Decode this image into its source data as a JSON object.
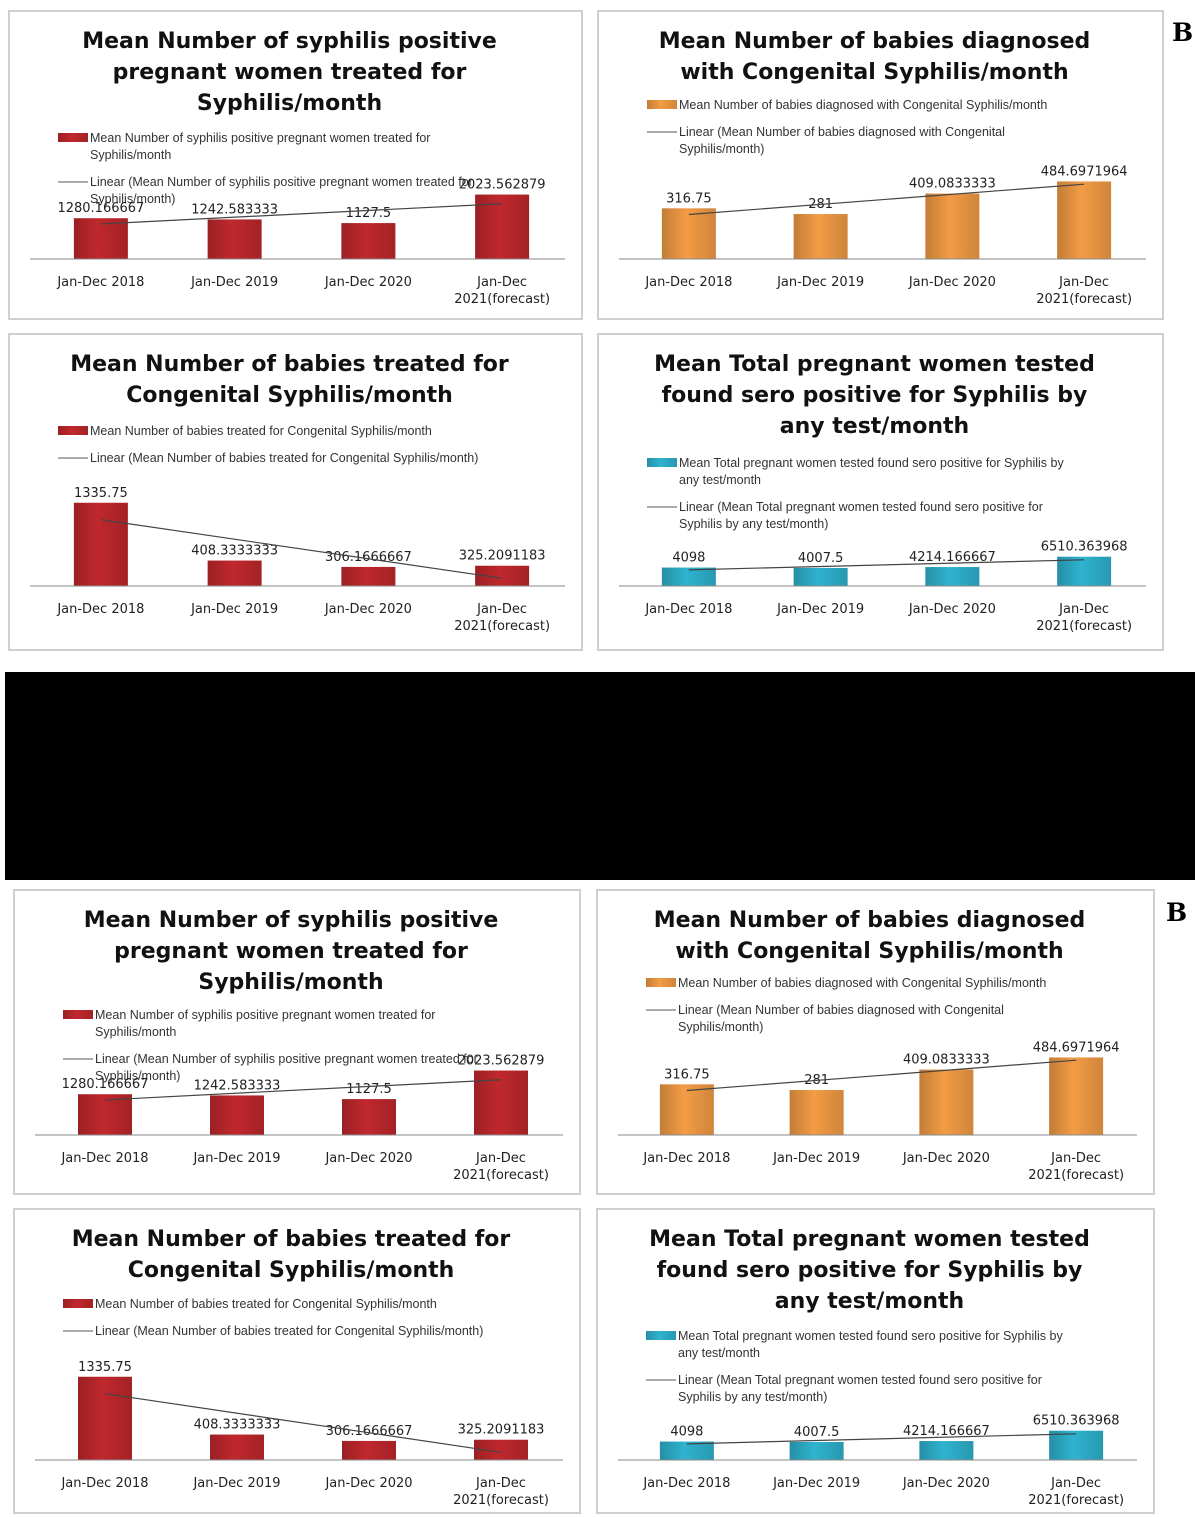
{
  "panel_labels": [
    "B",
    "B"
  ],
  "chart_data": [
    {
      "type": "bar",
      "title": "Mean Number of syphilis positive pregnant women treated for Syphilis/month",
      "title_lines": [
        "Mean Number of syphilis positive",
        "pregnant women treated for",
        "Syphilis/month"
      ],
      "categories": [
        "Jan-Dec 2018",
        "Jan-Dec 2019",
        "Jan-Dec 2020",
        "Jan-Dec 2021(forecast)"
      ],
      "category_lines": [
        [
          "Jan-Dec 2018"
        ],
        [
          "Jan-Dec 2019"
        ],
        [
          "Jan-Dec 2020"
        ],
        [
          "Jan-Dec",
          "2021(forecast)"
        ]
      ],
      "series": [
        {
          "name": "Mean Number of syphilis positive pregnant women treated for Syphilis/month",
          "values": [
            1280.166667,
            1242.583333,
            1127.5,
            2023.562879
          ]
        }
      ],
      "data_labels": [
        "1280.166667",
        "1242.583333",
        "1127.5",
        "2023.562879"
      ],
      "legend": [
        [
          "Mean Number of syphilis positive pregnant women treated for",
          "Syphilis/month"
        ],
        [
          "Linear (Mean Number of syphilis positive pregnant women treated for",
          "Syphilis/month)"
        ]
      ],
      "trendline": "linear",
      "ylim": [
        0,
        2700
      ],
      "legend_position": "top",
      "color": "#c0282d"
    },
    {
      "type": "bar",
      "title": "Mean Number of babies diagnosed with Congenital Syphilis/month",
      "title_lines": [
        "Mean Number of babies diagnosed",
        "with Congenital Syphilis/month"
      ],
      "categories": [
        "Jan-Dec 2018",
        "Jan-Dec 2019",
        "Jan-Dec 2020",
        "Jan-Dec 2021(forecast)"
      ],
      "category_lines": [
        [
          "Jan-Dec 2018"
        ],
        [
          "Jan-Dec 2019"
        ],
        [
          "Jan-Dec 2020"
        ],
        [
          "Jan-Dec",
          "2021(forecast)"
        ]
      ],
      "series": [
        {
          "name": "Mean Number of babies diagnosed with Congenital Syphilis/month",
          "values": [
            316.75,
            281,
            409.0833333,
            484.6971964
          ]
        }
      ],
      "data_labels": [
        "316.75",
        "281",
        "409.0833333",
        "484.6971964"
      ],
      "legend": [
        [
          "Mean Number of babies diagnosed with Congenital Syphilis/month"
        ],
        [
          "Linear (Mean Number of babies diagnosed with Congenital",
          "Syphilis/month)"
        ]
      ],
      "trendline": "linear",
      "ylim": [
        0,
        500
      ],
      "legend_position": "top",
      "color": "#f39c45"
    },
    {
      "type": "bar",
      "title": "Mean Number of babies treated for Congenital Syphilis/month",
      "title_lines": [
        "Mean Number of babies treated for",
        "Congenital Syphilis/month"
      ],
      "categories": [
        "Jan-Dec 2018",
        "Jan-Dec 2019",
        "Jan-Dec 2020",
        "Jan-Dec 2021(forecast)"
      ],
      "category_lines": [
        [
          "Jan-Dec 2018"
        ],
        [
          "Jan-Dec 2019"
        ],
        [
          "Jan-Dec 2020"
        ],
        [
          "Jan-Dec",
          "2021(forecast)"
        ]
      ],
      "series": [
        {
          "name": "Mean Number of babies treated for Congenital Syphilis/month",
          "values": [
            1335.75,
            408.3333333,
            306.1666667,
            325.2091183
          ]
        }
      ],
      "data_labels": [
        "1335.75",
        "408.3333333",
        "306.1666667",
        "325.2091183"
      ],
      "legend": [
        [
          "Mean Number of babies treated for Congenital Syphilis/month"
        ],
        [
          "Linear (Mean Number of babies treated for Congenital Syphilis/month)"
        ]
      ],
      "trendline": "linear",
      "ylim": [
        0,
        1380
      ],
      "legend_position": "top",
      "color": "#c0282d"
    },
    {
      "type": "bar",
      "title": "Mean Total pregnant women tested found sero positive for Syphilis by any test/month",
      "title_lines": [
        "Mean Total  pregnant women tested",
        "found sero positive for Syphilis by",
        "any test/month"
      ],
      "categories": [
        "Jan-Dec 2018",
        "Jan-Dec 2019",
        "Jan-Dec 2020",
        "Jan-Dec 2021(forecast)"
      ],
      "category_lines": [
        [
          "Jan-Dec 2018"
        ],
        [
          "Jan-Dec 2019"
        ],
        [
          "Jan-Dec 2020"
        ],
        [
          "Jan-Dec",
          "2021(forecast)"
        ]
      ],
      "series": [
        {
          "name": "Mean Total pregnant women tested found sero positive for Syphilis by any test/month",
          "values": [
            4098,
            4007.5,
            4214.166667,
            6510.363968
          ]
        }
      ],
      "data_labels": [
        "4098",
        "4007.5",
        "4214.166667",
        "6510.363968"
      ],
      "legend": [
        [
          "Mean Total  pregnant women tested found sero positive for Syphilis by",
          "any test/month"
        ],
        [
          "Linear (Mean Total  pregnant women tested found sero positive for",
          "Syphilis by any test/month)"
        ]
      ],
      "trendline": "linear",
      "ylim": [
        0,
        20000
      ],
      "legend_position": "top",
      "color": "#2fb3cf"
    }
  ]
}
